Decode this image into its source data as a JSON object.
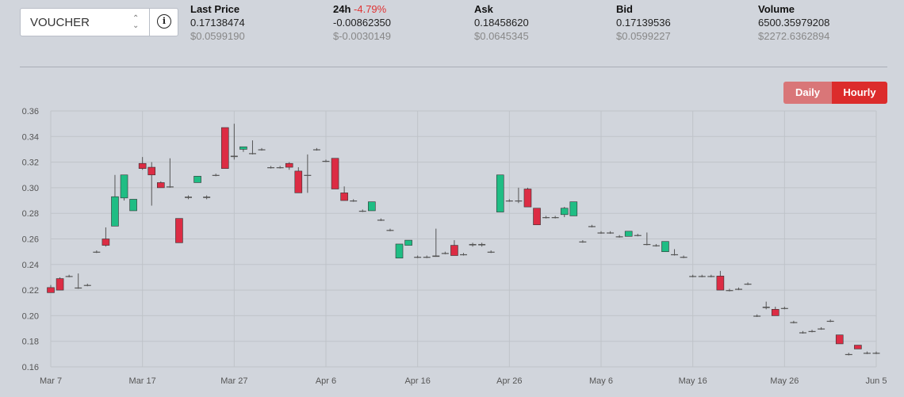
{
  "selector": {
    "value": "VOUCHER",
    "caret_up": "⌃",
    "caret_down": "⌄",
    "info_icon": "i"
  },
  "stats": [
    {
      "label": "Last Price",
      "change": "",
      "value": "0.17138474",
      "usd": "$0.0599190",
      "negative": false
    },
    {
      "label": "24h",
      "change": "-4.79%",
      "value": "-0.00862350",
      "usd": "$-0.0030149",
      "negative": true
    },
    {
      "label": "Ask",
      "change": "",
      "value": "0.18458620",
      "usd": "$0.0645345",
      "negative": false
    },
    {
      "label": "Bid",
      "change": "",
      "value": "0.17139536",
      "usd": "$0.0599227",
      "negative": false
    },
    {
      "label": "Volume",
      "change": "",
      "value": "6500.35979208",
      "usd": "$2272.6362894",
      "negative": false
    }
  ],
  "toggle": {
    "daily": "Daily",
    "hourly": "Hourly",
    "active": "Hourly"
  },
  "colors": {
    "up": "#1fbd84",
    "down": "#dc2c44",
    "wick": "#555555",
    "grid": "#bfc3c9",
    "text": "#555555"
  },
  "chart_data": {
    "type": "candlestick",
    "ylim": [
      0.16,
      0.36
    ],
    "yticks": [
      "0.16",
      "0.18",
      "0.20",
      "0.22",
      "0.24",
      "0.26",
      "0.28",
      "0.30",
      "0.32",
      "0.34",
      "0.36"
    ],
    "xticks": [
      "Mar 7",
      "Mar 17",
      "Mar 27",
      "Apr 6",
      "Apr 16",
      "Apr 26",
      "May 6",
      "May 16",
      "May 26",
      "Jun 5"
    ],
    "x_start": "2024-03-07",
    "grid": true,
    "candles": [
      {
        "d": 0,
        "o": 0.222,
        "h": 0.224,
        "l": 0.218,
        "c": 0.218
      },
      {
        "d": 1,
        "o": 0.229,
        "h": 0.23,
        "l": 0.22,
        "c": 0.22
      },
      {
        "d": 2,
        "o": 0.231,
        "h": 0.232,
        "l": 0.23,
        "c": 0.231
      },
      {
        "d": 3,
        "o": 0.222,
        "h": 0.233,
        "l": 0.221,
        "c": 0.222
      },
      {
        "d": 4,
        "o": 0.224,
        "h": 0.225,
        "l": 0.223,
        "c": 0.224
      },
      {
        "d": 5,
        "o": 0.25,
        "h": 0.251,
        "l": 0.249,
        "c": 0.25
      },
      {
        "d": 6,
        "o": 0.26,
        "h": 0.269,
        "l": 0.254,
        "c": 0.255
      },
      {
        "d": 7,
        "o": 0.27,
        "h": 0.31,
        "l": 0.27,
        "c": 0.293
      },
      {
        "d": 8,
        "o": 0.292,
        "h": 0.31,
        "l": 0.29,
        "c": 0.31
      },
      {
        "d": 9,
        "o": 0.282,
        "h": 0.291,
        "l": 0.282,
        "c": 0.291
      },
      {
        "d": 10,
        "o": 0.319,
        "h": 0.324,
        "l": 0.314,
        "c": 0.315
      },
      {
        "d": 11,
        "o": 0.316,
        "h": 0.32,
        "l": 0.286,
        "c": 0.31
      },
      {
        "d": 12,
        "o": 0.304,
        "h": 0.305,
        "l": 0.3,
        "c": 0.3
      },
      {
        "d": 13,
        "o": 0.301,
        "h": 0.323,
        "l": 0.3,
        "c": 0.301
      },
      {
        "d": 14,
        "o": 0.276,
        "h": 0.276,
        "l": 0.257,
        "c": 0.257
      },
      {
        "d": 15,
        "o": 0.292,
        "h": 0.294,
        "l": 0.291,
        "c": 0.293
      },
      {
        "d": 16,
        "o": 0.304,
        "h": 0.309,
        "l": 0.304,
        "c": 0.309
      },
      {
        "d": 17,
        "o": 0.292,
        "h": 0.294,
        "l": 0.291,
        "c": 0.293
      },
      {
        "d": 18,
        "o": 0.31,
        "h": 0.311,
        "l": 0.309,
        "c": 0.31
      },
      {
        "d": 19,
        "o": 0.347,
        "h": 0.347,
        "l": 0.315,
        "c": 0.315
      },
      {
        "d": 20,
        "o": 0.324,
        "h": 0.35,
        "l": 0.322,
        "c": 0.325
      },
      {
        "d": 21,
        "o": 0.33,
        "h": 0.332,
        "l": 0.328,
        "c": 0.332
      },
      {
        "d": 22,
        "o": 0.327,
        "h": 0.337,
        "l": 0.326,
        "c": 0.327
      },
      {
        "d": 23,
        "o": 0.33,
        "h": 0.331,
        "l": 0.329,
        "c": 0.33
      },
      {
        "d": 24,
        "o": 0.316,
        "h": 0.317,
        "l": 0.315,
        "c": 0.316
      },
      {
        "d": 25,
        "o": 0.316,
        "h": 0.317,
        "l": 0.315,
        "c": 0.316
      },
      {
        "d": 26,
        "o": 0.319,
        "h": 0.32,
        "l": 0.314,
        "c": 0.316
      },
      {
        "d": 27,
        "o": 0.313,
        "h": 0.316,
        "l": 0.296,
        "c": 0.296
      },
      {
        "d": 28,
        "o": 0.31,
        "h": 0.326,
        "l": 0.296,
        "c": 0.31
      },
      {
        "d": 29,
        "o": 0.33,
        "h": 0.331,
        "l": 0.329,
        "c": 0.33
      },
      {
        "d": 30,
        "o": 0.321,
        "h": 0.322,
        "l": 0.32,
        "c": 0.321
      },
      {
        "d": 31,
        "o": 0.323,
        "h": 0.323,
        "l": 0.299,
        "c": 0.299
      },
      {
        "d": 32,
        "o": 0.296,
        "h": 0.301,
        "l": 0.29,
        "c": 0.29
      },
      {
        "d": 33,
        "o": 0.29,
        "h": 0.291,
        "l": 0.289,
        "c": 0.29
      },
      {
        "d": 34,
        "o": 0.282,
        "h": 0.283,
        "l": 0.281,
        "c": 0.282
      },
      {
        "d": 35,
        "o": 0.282,
        "h": 0.289,
        "l": 0.282,
        "c": 0.289
      },
      {
        "d": 36,
        "o": 0.275,
        "h": 0.276,
        "l": 0.274,
        "c": 0.275
      },
      {
        "d": 37,
        "o": 0.267,
        "h": 0.268,
        "l": 0.266,
        "c": 0.267
      },
      {
        "d": 38,
        "o": 0.245,
        "h": 0.256,
        "l": 0.245,
        "c": 0.256
      },
      {
        "d": 39,
        "o": 0.255,
        "h": 0.259,
        "l": 0.255,
        "c": 0.259
      },
      {
        "d": 40,
        "o": 0.246,
        "h": 0.247,
        "l": 0.245,
        "c": 0.246
      },
      {
        "d": 41,
        "o": 0.246,
        "h": 0.247,
        "l": 0.245,
        "c": 0.246
      },
      {
        "d": 42,
        "o": 0.246,
        "h": 0.268,
        "l": 0.246,
        "c": 0.247
      },
      {
        "d": 43,
        "o": 0.249,
        "h": 0.25,
        "l": 0.248,
        "c": 0.249
      },
      {
        "d": 44,
        "o": 0.255,
        "h": 0.259,
        "l": 0.247,
        "c": 0.247
      },
      {
        "d": 45,
        "o": 0.248,
        "h": 0.249,
        "l": 0.247,
        "c": 0.248
      },
      {
        "d": 46,
        "o": 0.256,
        "h": 0.257,
        "l": 0.254,
        "c": 0.255
      },
      {
        "d": 47,
        "o": 0.256,
        "h": 0.257,
        "l": 0.254,
        "c": 0.255
      },
      {
        "d": 48,
        "o": 0.25,
        "h": 0.251,
        "l": 0.249,
        "c": 0.25
      },
      {
        "d": 49,
        "o": 0.281,
        "h": 0.31,
        "l": 0.281,
        "c": 0.31
      },
      {
        "d": 50,
        "o": 0.29,
        "h": 0.291,
        "l": 0.289,
        "c": 0.29
      },
      {
        "d": 51,
        "o": 0.29,
        "h": 0.3,
        "l": 0.288,
        "c": 0.29
      },
      {
        "d": 52,
        "o": 0.299,
        "h": 0.3,
        "l": 0.285,
        "c": 0.285
      },
      {
        "d": 53,
        "o": 0.284,
        "h": 0.284,
        "l": 0.271,
        "c": 0.271
      },
      {
        "d": 54,
        "o": 0.277,
        "h": 0.278,
        "l": 0.276,
        "c": 0.277
      },
      {
        "d": 55,
        "o": 0.277,
        "h": 0.278,
        "l": 0.276,
        "c": 0.277
      },
      {
        "d": 56,
        "o": 0.279,
        "h": 0.285,
        "l": 0.277,
        "c": 0.284
      },
      {
        "d": 57,
        "o": 0.278,
        "h": 0.289,
        "l": 0.278,
        "c": 0.289
      },
      {
        "d": 58,
        "o": 0.258,
        "h": 0.259,
        "l": 0.257,
        "c": 0.258
      },
      {
        "d": 59,
        "o": 0.27,
        "h": 0.271,
        "l": 0.269,
        "c": 0.27
      },
      {
        "d": 60,
        "o": 0.265,
        "h": 0.266,
        "l": 0.264,
        "c": 0.265
      },
      {
        "d": 61,
        "o": 0.265,
        "h": 0.266,
        "l": 0.264,
        "c": 0.265
      },
      {
        "d": 62,
        "o": 0.262,
        "h": 0.263,
        "l": 0.261,
        "c": 0.262
      },
      {
        "d": 63,
        "o": 0.262,
        "h": 0.266,
        "l": 0.262,
        "c": 0.266
      },
      {
        "d": 64,
        "o": 0.263,
        "h": 0.264,
        "l": 0.262,
        "c": 0.263
      },
      {
        "d": 65,
        "o": 0.256,
        "h": 0.265,
        "l": 0.255,
        "c": 0.256
      },
      {
        "d": 66,
        "o": 0.255,
        "h": 0.256,
        "l": 0.254,
        "c": 0.255
      },
      {
        "d": 67,
        "o": 0.25,
        "h": 0.258,
        "l": 0.25,
        "c": 0.258
      },
      {
        "d": 68,
        "o": 0.248,
        "h": 0.252,
        "l": 0.247,
        "c": 0.248
      },
      {
        "d": 69,
        "o": 0.246,
        "h": 0.247,
        "l": 0.245,
        "c": 0.246
      },
      {
        "d": 70,
        "o": 0.231,
        "h": 0.232,
        "l": 0.23,
        "c": 0.231
      },
      {
        "d": 71,
        "o": 0.231,
        "h": 0.232,
        "l": 0.23,
        "c": 0.231
      },
      {
        "d": 72,
        "o": 0.231,
        "h": 0.232,
        "l": 0.23,
        "c": 0.231
      },
      {
        "d": 73,
        "o": 0.231,
        "h": 0.235,
        "l": 0.22,
        "c": 0.22
      },
      {
        "d": 74,
        "o": 0.22,
        "h": 0.221,
        "l": 0.219,
        "c": 0.22
      },
      {
        "d": 75,
        "o": 0.221,
        "h": 0.222,
        "l": 0.22,
        "c": 0.221
      },
      {
        "d": 76,
        "o": 0.225,
        "h": 0.226,
        "l": 0.224,
        "c": 0.225
      },
      {
        "d": 77,
        "o": 0.2,
        "h": 0.201,
        "l": 0.199,
        "c": 0.2
      },
      {
        "d": 78,
        "o": 0.206,
        "h": 0.211,
        "l": 0.205,
        "c": 0.207
      },
      {
        "d": 79,
        "o": 0.205,
        "h": 0.207,
        "l": 0.2,
        "c": 0.2
      },
      {
        "d": 80,
        "o": 0.206,
        "h": 0.207,
        "l": 0.205,
        "c": 0.206
      },
      {
        "d": 81,
        "o": 0.195,
        "h": 0.196,
        "l": 0.194,
        "c": 0.195
      },
      {
        "d": 82,
        "o": 0.187,
        "h": 0.188,
        "l": 0.186,
        "c": 0.187
      },
      {
        "d": 83,
        "o": 0.188,
        "h": 0.189,
        "l": 0.187,
        "c": 0.188
      },
      {
        "d": 84,
        "o": 0.19,
        "h": 0.191,
        "l": 0.189,
        "c": 0.19
      },
      {
        "d": 85,
        "o": 0.196,
        "h": 0.197,
        "l": 0.195,
        "c": 0.196
      },
      {
        "d": 86,
        "o": 0.185,
        "h": 0.185,
        "l": 0.178,
        "c": 0.178
      },
      {
        "d": 87,
        "o": 0.17,
        "h": 0.171,
        "l": 0.169,
        "c": 0.17
      },
      {
        "d": 88,
        "o": 0.177,
        "h": 0.177,
        "l": 0.174,
        "c": 0.174
      },
      {
        "d": 89,
        "o": 0.171,
        "h": 0.172,
        "l": 0.17,
        "c": 0.171
      },
      {
        "d": 90,
        "o": 0.171,
        "h": 0.172,
        "l": 0.17,
        "c": 0.171
      }
    ]
  }
}
